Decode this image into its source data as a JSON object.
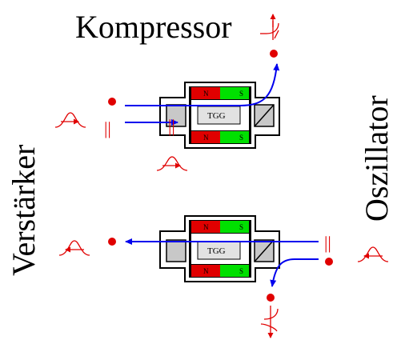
{
  "labels": {
    "kompressor": "Kompressor",
    "verstaerker": "Verstärker",
    "oszillator": "Oszillator"
  },
  "isolator": {
    "magnet_north": "N",
    "magnet_south": "S",
    "crystal": "TGG"
  },
  "polarization_mark": "||",
  "colors": {
    "beam": "#0000ee",
    "point": "#e00000",
    "north": "#e00000",
    "south": "#00e000",
    "housing": "#000000",
    "element": "#c8c8c8"
  }
}
